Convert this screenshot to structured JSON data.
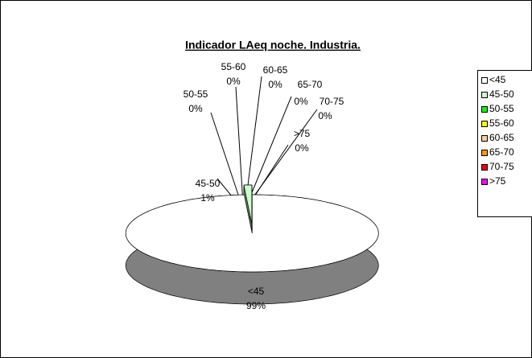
{
  "chart_data": {
    "type": "pie",
    "title": "Indicador LAeq noche. Industria.",
    "categories": [
      "<45",
      "45-50",
      "50-55",
      "55-60",
      "60-65",
      "65-70",
      "70-75",
      ">75"
    ],
    "values": [
      99,
      1,
      0,
      0,
      0,
      0,
      0,
      0
    ],
    "value_labels": [
      "99%",
      "1%",
      "0%",
      "0%",
      "0%",
      "0%",
      "0%",
      "0%"
    ],
    "colors": [
      "#ffffff",
      "#ccffcc",
      "#00ff00",
      "#ffff00",
      "#ffcc99",
      "#ff9900",
      "#ff0000",
      "#ff00ff"
    ],
    "legend": "right"
  }
}
